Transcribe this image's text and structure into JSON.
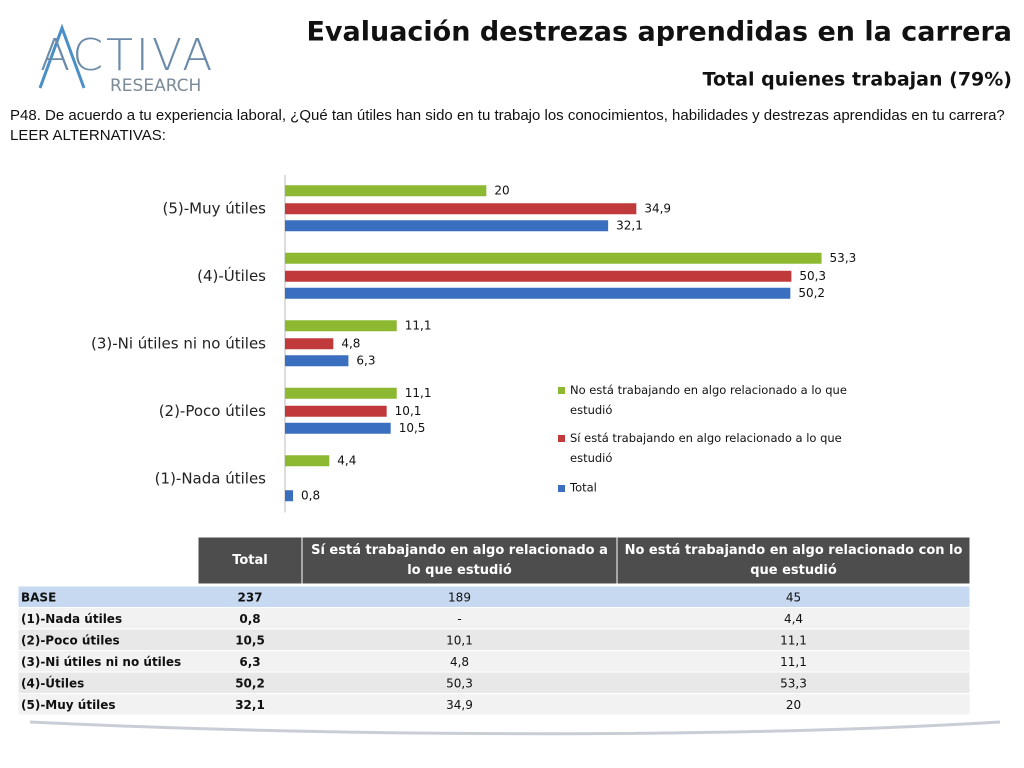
{
  "logo": {
    "name": "ACTIVA",
    "sub": "RESEARCH"
  },
  "title": "Evaluación destrezas aprendidas en la carrera",
  "subtitle": "Total quienes trabajan (79%)",
  "question": "P48. De acuerdo a tu experiencia laboral, ¿Qué tan útiles han sido en tu trabajo los conocimientos, habilidades y destrezas aprendidas en tu carrera? LEER ALTERNATIVAS:",
  "chart_data": {
    "type": "hbar",
    "categories": [
      "(5)-Muy útiles",
      "(4)-Útiles",
      "(3)-Ni útiles ni no útiles",
      "(2)-Poco útiles",
      "(1)-Nada útiles"
    ],
    "series": [
      {
        "name": "No está trabajando en algo relacionado a lo que estudió",
        "color": "#8db832",
        "values": [
          20,
          53.3,
          11.1,
          11.1,
          4.4
        ],
        "value_labels": [
          "20",
          "53,3",
          "11,1",
          "11,1",
          "4,4"
        ]
      },
      {
        "name": "Sí está trabajando en algo relacionado a lo que estudió",
        "color": "#c0393b",
        "values": [
          34.9,
          50.3,
          4.8,
          10.1,
          null
        ],
        "value_labels": [
          "34,9",
          "50,3",
          "4,8",
          "10,1",
          null
        ]
      },
      {
        "name": "Total",
        "color": "#3a6fbf",
        "values": [
          32.1,
          50.2,
          6.3,
          10.5,
          0.8
        ],
        "value_labels": [
          "32,1",
          "50,2",
          "6,3",
          "10,5",
          "0,8"
        ]
      }
    ],
    "xlim": [
      0,
      60
    ],
    "legend": "lower-right"
  },
  "table": {
    "header": [
      "",
      "Total",
      "Sí está trabajando en algo relacionado a lo que estudió",
      "No está trabajando en algo relacionado con lo que estudió"
    ],
    "rows": [
      [
        "BASE",
        "237",
        "189",
        "45"
      ],
      [
        "(1)-Nada útiles",
        "0,8",
        "-",
        "4,4"
      ],
      [
        "(2)-Poco útiles",
        "10,5",
        "10,1",
        "11,1"
      ],
      [
        "(3)-Ni útiles ni no útiles",
        "6,3",
        "4,8",
        "11,1"
      ],
      [
        "(4)-Útiles",
        "50,2",
        "50,3",
        "53,3"
      ],
      [
        "(5)-Muy útiles",
        "32,1",
        "34,9",
        "20"
      ]
    ]
  }
}
